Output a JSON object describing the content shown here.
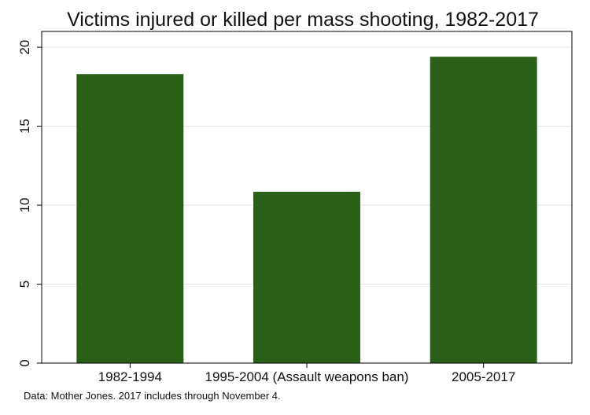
{
  "chart_data": {
    "type": "bar",
    "title": "Victims injured or killed per mass shooting, 1982-2017",
    "xlabel": "",
    "ylabel": "",
    "categories": [
      "1982-1994",
      "1995-2004 (Assault weapons ban)",
      "2005-2017"
    ],
    "values": [
      18.3,
      10.85,
      19.4
    ],
    "ylim": [
      0,
      21
    ],
    "yticks": [
      "0",
      "5",
      "10",
      "15",
      "20"
    ],
    "grid": true,
    "legend": "none",
    "bar_color": "#2a5f18",
    "note": "Data: Mother Jones. 2017 includes through November 4."
  }
}
